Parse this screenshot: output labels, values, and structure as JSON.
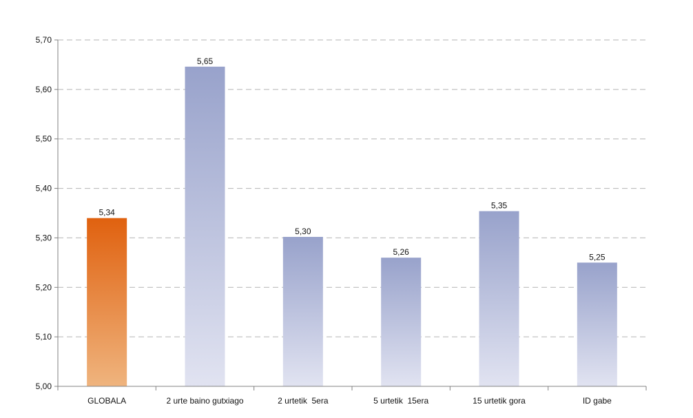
{
  "chart_data": {
    "type": "bar",
    "title": "",
    "xlabel": "",
    "ylabel": "",
    "categories": [
      "GLOBALA",
      "2 urte baino gutxiago",
      "2 urtetik  5era",
      "5 urtetik  15era",
      "15 urtetik gora",
      "ID gabe"
    ],
    "values": [
      5.34,
      5.646,
      5.302,
      5.26,
      5.354,
      5.25
    ],
    "value_labels": [
      "5,34",
      "5,65",
      "5,30",
      "5,26",
      "5,35",
      "5,25"
    ],
    "ylim": [
      5.0,
      5.7
    ],
    "yticks": [
      5.0,
      5.1,
      5.2,
      5.3,
      5.4,
      5.5,
      5.6,
      5.7
    ],
    "ytick_labels": [
      "5,00",
      "5,10",
      "5,20",
      "5,30",
      "5,40",
      "5,50",
      "5,60",
      "5,70"
    ],
    "grid": true,
    "legend": false,
    "highlight_index": 0,
    "colors": {
      "highlight_top": "#e0610f",
      "highlight_bottom": "#efb47e",
      "bar_top": "#98a2cb",
      "bar_bottom": "#e1e3f1",
      "grid": "#b3b3b3",
      "axis": "#808080"
    }
  }
}
